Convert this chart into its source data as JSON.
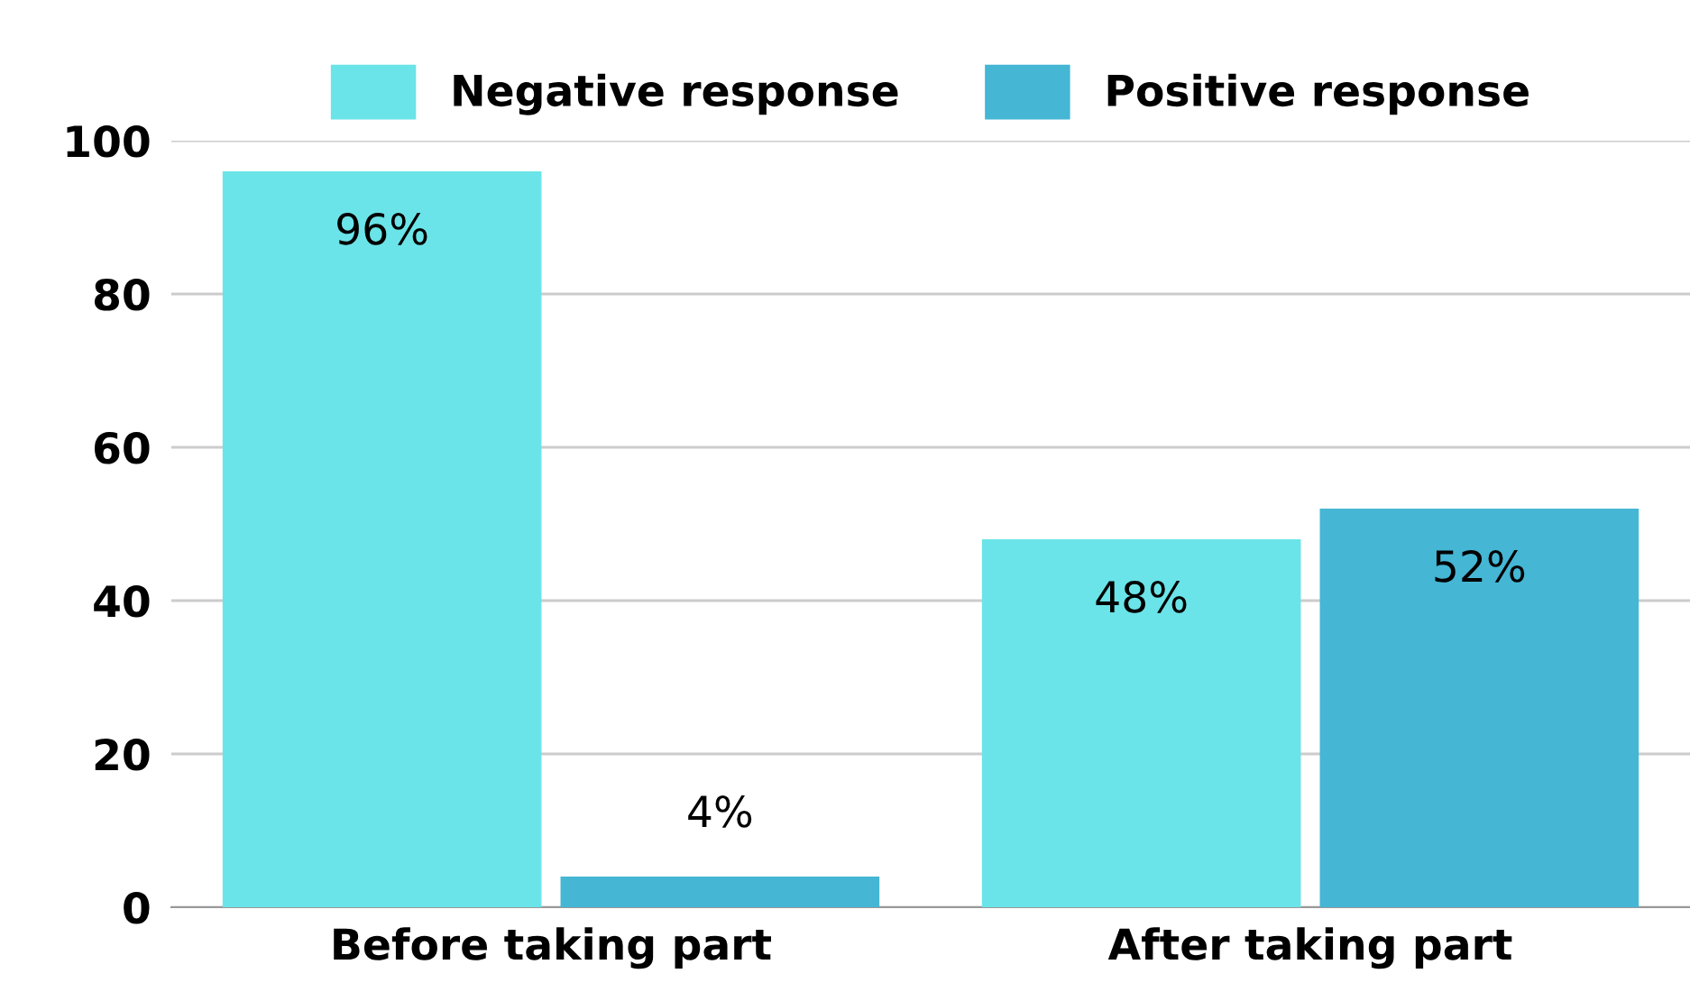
{
  "chart_data": {
    "type": "bar",
    "categories": [
      "Before taking part",
      "After taking part"
    ],
    "series": [
      {
        "name": "Negative response",
        "color": "#6ae4e8",
        "values": [
          96,
          48
        ],
        "value_labels": [
          "96%",
          "48%"
        ]
      },
      {
        "name": "Positive response",
        "color": "#45b6d4",
        "values": [
          4,
          52
        ],
        "value_labels": [
          "4%",
          "52%"
        ]
      }
    ],
    "ylim": [
      0,
      100
    ],
    "yticks": [
      0,
      20,
      40,
      60,
      80,
      100
    ],
    "grid": "y",
    "legend": "top"
  }
}
